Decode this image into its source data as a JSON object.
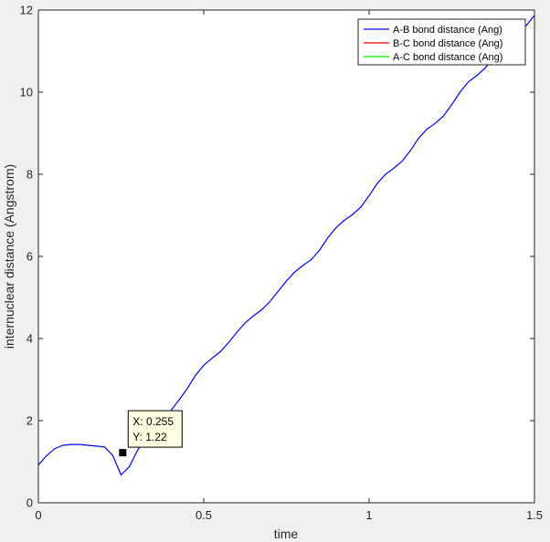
{
  "chart_data": {
    "type": "line",
    "xlabel": "time",
    "ylabel": "internuclear distance (Angstrom)",
    "xlim": [
      0,
      1.5
    ],
    "ylim": [
      0,
      12
    ],
    "x_ticks": [
      0,
      0.5,
      1,
      1.5
    ],
    "x_tick_labels": [
      "0",
      "0.5",
      "1",
      "1.5"
    ],
    "y_ticks": [
      0,
      2,
      4,
      6,
      8,
      10,
      12
    ],
    "y_tick_labels": [
      "0",
      "2",
      "4",
      "6",
      "8",
      "10",
      "12"
    ],
    "grid": false,
    "legend_position": "top-right",
    "series": [
      {
        "name": "A-B bond distance (Ang)",
        "color": "#0000ff",
        "x": [
          0,
          0.025,
          0.05,
          0.075,
          0.1,
          0.125,
          0.15,
          0.175,
          0.2,
          0.225,
          0.25,
          0.275,
          0.3,
          0.325,
          0.35,
          0.375,
          0.4,
          0.425,
          0.45,
          0.475,
          0.5,
          0.525,
          0.55,
          0.575,
          0.6,
          0.625,
          0.65,
          0.675,
          0.7,
          0.725,
          0.75,
          0.775,
          0.8,
          0.825,
          0.85,
          0.875,
          0.9,
          0.925,
          0.95,
          0.975,
          1.0,
          1.025,
          1.05,
          1.075,
          1.1,
          1.125,
          1.15,
          1.175,
          1.2,
          1.225,
          1.25,
          1.275,
          1.3,
          1.325,
          1.35,
          1.375,
          1.4,
          1.425,
          1.45,
          1.475,
          1.5
        ],
        "y": [
          0.92,
          1.15,
          1.32,
          1.4,
          1.42,
          1.42,
          1.4,
          1.38,
          1.36,
          1.15,
          0.68,
          0.88,
          1.28,
          1.57,
          1.81,
          2.02,
          2.24,
          2.5,
          2.78,
          3.1,
          3.35,
          3.52,
          3.68,
          3.9,
          4.15,
          4.38,
          4.55,
          4.7,
          4.9,
          5.15,
          5.4,
          5.62,
          5.78,
          5.92,
          6.15,
          6.45,
          6.7,
          6.88,
          7.02,
          7.2,
          7.48,
          7.78,
          8.0,
          8.15,
          8.32,
          8.58,
          8.88,
          9.1,
          9.24,
          9.42,
          9.7,
          10.0,
          10.25,
          10.4,
          10.58,
          10.82,
          11.08,
          11.3,
          11.45,
          11.62,
          11.87
        ]
      },
      {
        "name": "B-C bond distance (Ang)",
        "color": "#ff0000",
        "x": [],
        "y": []
      },
      {
        "name": "A-C bond distance (Ang)",
        "color": "#00ee00",
        "x": [],
        "y": []
      }
    ],
    "datatip": {
      "x": 0.255,
      "y": 1.22,
      "label_x": "X: 0.255",
      "label_y": "Y: 1.22"
    }
  }
}
